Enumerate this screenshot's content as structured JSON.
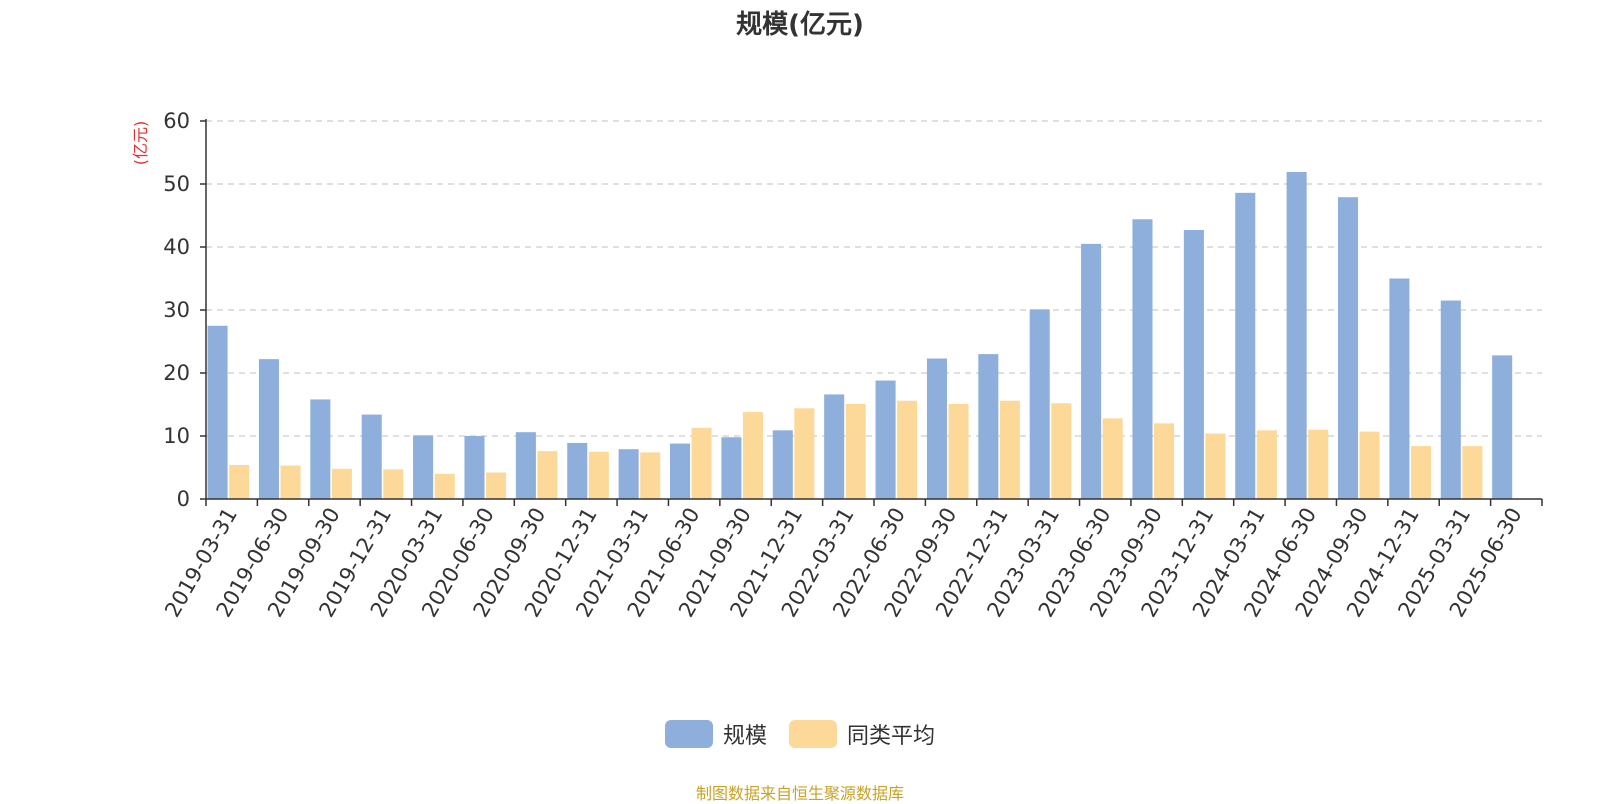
{
  "chart_data": {
    "type": "bar",
    "title": "规模(亿元)",
    "ylabel": "(亿元)",
    "ylim": [
      0,
      60
    ],
    "yticks": [
      0,
      10,
      20,
      30,
      40,
      50,
      60
    ],
    "grid": true,
    "legend_position": "bottom-center",
    "categories": [
      "2019-03-31",
      "2019-06-30",
      "2019-09-30",
      "2019-12-31",
      "2020-03-31",
      "2020-06-30",
      "2020-09-30",
      "2020-12-31",
      "2021-03-31",
      "2021-06-30",
      "2021-09-30",
      "2021-12-31",
      "2022-03-31",
      "2022-06-30",
      "2022-09-30",
      "2022-12-31",
      "2023-03-31",
      "2023-06-30",
      "2023-09-30",
      "2023-12-31",
      "2024-03-31",
      "2024-06-30",
      "2024-09-30",
      "2024-12-31",
      "2025-03-31",
      "2025-06-30"
    ],
    "series": [
      {
        "name": "规模",
        "color": "#8eaedb",
        "values": [
          27.5,
          22.2,
          15.8,
          13.4,
          10.1,
          10.0,
          10.6,
          8.9,
          7.9,
          8.8,
          9.8,
          10.9,
          16.6,
          18.8,
          22.3,
          23.0,
          30.1,
          40.5,
          44.4,
          42.7,
          48.6,
          51.9,
          47.9,
          35.0,
          31.5,
          22.8
        ]
      },
      {
        "name": "同类平均",
        "color": "#fdd999",
        "values": [
          5.4,
          5.3,
          4.8,
          4.7,
          4.0,
          4.2,
          7.6,
          7.5,
          7.4,
          11.3,
          13.8,
          14.4,
          15.1,
          15.6,
          15.1,
          15.6,
          15.2,
          12.8,
          12.0,
          10.4,
          10.9,
          11.0,
          10.7,
          8.4,
          8.4,
          null
        ]
      }
    ]
  },
  "source_note": "制图数据来自恒生聚源数据库"
}
